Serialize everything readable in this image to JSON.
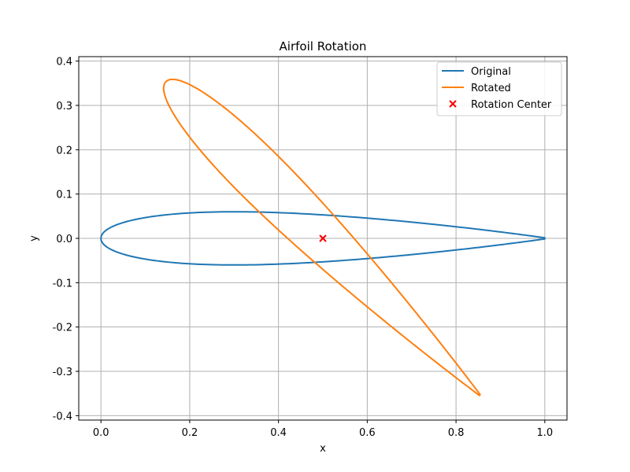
{
  "chart_data": {
    "type": "line",
    "title": "Airfoil Rotation",
    "xlabel": "x",
    "ylabel": "y",
    "xlim": [
      -0.05,
      1.05
    ],
    "ylim": [
      -0.41,
      0.41
    ],
    "xticks": [
      "0.0",
      "0.2",
      "0.4",
      "0.6",
      "0.8",
      "1.0"
    ],
    "yticks": [
      "-0.4",
      "-0.3",
      "-0.2",
      "-0.1",
      "0.0",
      "0.1",
      "0.2",
      "0.3",
      "0.4"
    ],
    "grid": true,
    "legend_position": "top-right",
    "thickness": 0.12,
    "rotation_deg": -45,
    "series": [
      {
        "name": "Original",
        "color": "#1f77b4",
        "shape": "NACA 0012 symmetric airfoil, chord 0 to 1"
      },
      {
        "name": "Rotated",
        "color": "#ff7f0e",
        "shape": "Original rotated -45 degrees about rotation center"
      },
      {
        "name": "Rotation Center",
        "color": "#ff0000",
        "marker": "x",
        "x": [
          0.5
        ],
        "y": [
          0.0
        ]
      }
    ]
  }
}
